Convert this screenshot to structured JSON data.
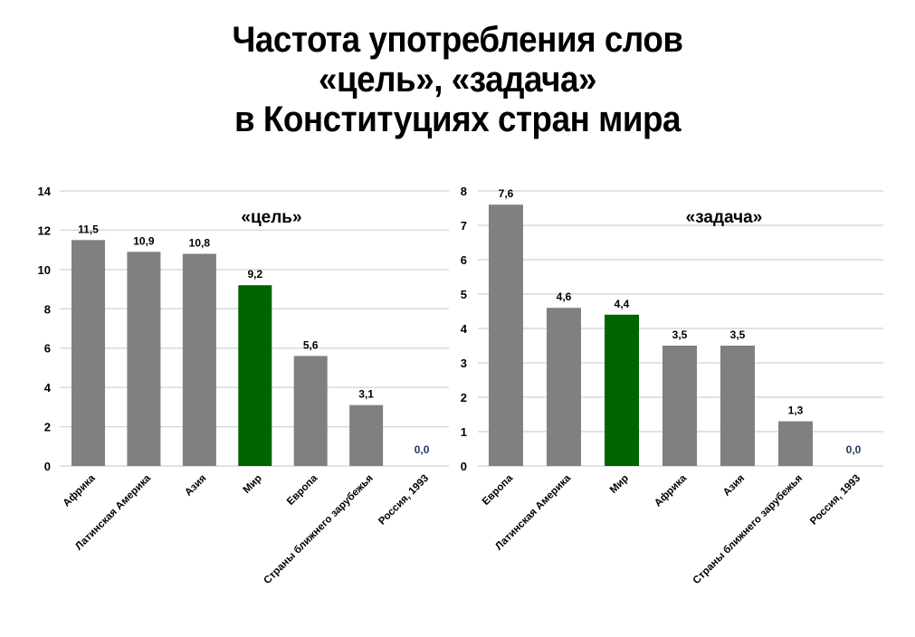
{
  "title": {
    "lines": [
      "Частота употребления слов",
      "«цель», «задача»",
      "в Конституциях стран мира"
    ]
  },
  "colors": {
    "bar_default": "#808080",
    "bar_highlight": "#006400",
    "zero_label": "#1f3864",
    "grid": "#d9d9d9",
    "text": "#000000"
  },
  "chart_data": [
    {
      "type": "bar",
      "title": "«цель»",
      "categories": [
        "Африка",
        "Латинская Америка",
        "Азия",
        "Мир",
        "Европа",
        "Страны ближнего зарубежья",
        "Россия, 1993"
      ],
      "values": [
        11.5,
        10.9,
        10.8,
        9.2,
        5.6,
        3.1,
        0.0
      ],
      "value_labels": [
        "11,5",
        "10,9",
        "10,8",
        "9,2",
        "5,6",
        "3,1",
        "0,0"
      ],
      "highlight_category": "Мир",
      "xlabel": "",
      "ylabel": "",
      "ylim": [
        0,
        14
      ],
      "yticks": [
        0,
        2,
        4,
        6,
        8,
        10,
        12,
        14
      ],
      "grid": true,
      "legend": "none"
    },
    {
      "type": "bar",
      "title": "«задача»",
      "categories": [
        "Европа",
        "Латинская Америка",
        "Мир",
        "Африка",
        "Азия",
        "Страны ближнего зарубежья",
        "Россия, 1993"
      ],
      "values": [
        7.6,
        4.6,
        4.4,
        3.5,
        3.5,
        1.3,
        0.0
      ],
      "value_labels": [
        "7,6",
        "4,6",
        "4,4",
        "3,5",
        "3,5",
        "1,3",
        "0,0"
      ],
      "highlight_category": "Мир",
      "xlabel": "",
      "ylabel": "",
      "ylim": [
        0,
        8
      ],
      "yticks": [
        0,
        1,
        2,
        3,
        4,
        5,
        6,
        7,
        8
      ],
      "grid": true,
      "legend": "none"
    }
  ]
}
